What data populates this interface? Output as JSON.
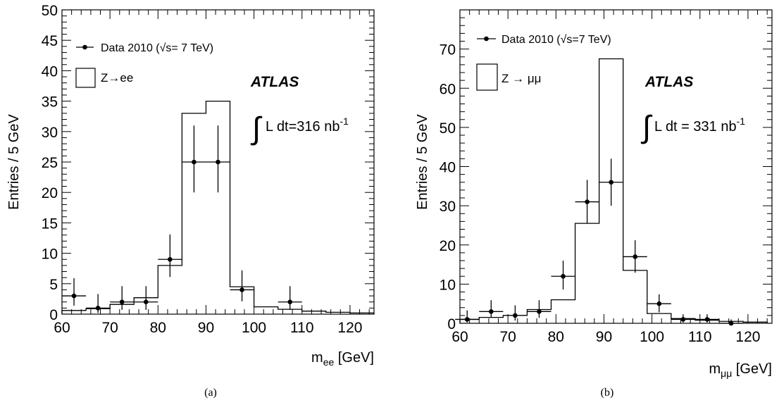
{
  "chart_data": [
    {
      "type": "histogram",
      "panel_label": "(a)",
      "ylabel": "Entries / 5 GeV",
      "xlabel_main": "m",
      "xlabel_sub": "ee",
      "xlabel_unit": " [GeV]",
      "xlim": [
        60,
        125
      ],
      "ylim": [
        0,
        50
      ],
      "xticks": [
        60,
        70,
        80,
        90,
        100,
        110,
        120
      ],
      "yticks": [
        0,
        5,
        10,
        15,
        20,
        25,
        30,
        35,
        40,
        45,
        50
      ],
      "atlas_label": "ATLAS",
      "lumi_label": "L dt=316 nb",
      "lumi_exp": "-1",
      "legend_data": "Data 2010 (√s= 7 TeV)",
      "legend_mc": "Z→ee",
      "mc_bins": [
        60,
        65,
        70,
        75,
        80,
        85,
        90,
        95,
        100,
        105,
        110,
        115,
        120,
        125
      ],
      "mc_values": [
        0.6,
        0.9,
        1.6,
        2.7,
        8.0,
        33.0,
        35.0,
        4.5,
        1.2,
        0.8,
        0.5,
        0.3,
        0.2
      ],
      "data_x": [
        62.5,
        67.5,
        72.5,
        77.5,
        82.5,
        87.5,
        92.5,
        97.5,
        107.5
      ],
      "data_y": [
        3,
        1,
        2,
        2,
        9,
        25,
        25,
        4,
        2
      ],
      "data_err_up": [
        2.9,
        2.3,
        2.6,
        2.6,
        4.1,
        6.0,
        6.0,
        3.2,
        2.6
      ],
      "data_err_dn": [
        1.6,
        0.8,
        1.3,
        1.3,
        2.9,
        5.0,
        5.0,
        1.9,
        1.3
      ]
    },
    {
      "type": "histogram",
      "panel_label": "(b)",
      "ylabel": "Entries / 5 GeV",
      "xlabel_main": "m",
      "xlabel_sub": "μμ",
      "xlabel_unit": " [GeV]",
      "xlim": [
        60,
        125
      ],
      "ylim": [
        0,
        80
      ],
      "xticks": [
        60,
        70,
        80,
        90,
        100,
        110,
        120
      ],
      "yticks": [
        0,
        10,
        20,
        30,
        40,
        50,
        60,
        70
      ],
      "atlas_label": "ATLAS",
      "lumi_label": "L dt = 331 nb",
      "lumi_exp": "-1",
      "legend_data": "Data 2010 (√s=7 TeV)",
      "legend_mc": "Z → μμ",
      "mc_bins": [
        59,
        64,
        69,
        74,
        79,
        84,
        89,
        94,
        99,
        104,
        109,
        114,
        119,
        124
      ],
      "mc_values": [
        1.0,
        1.5,
        2.0,
        3.5,
        6.0,
        25.5,
        67.5,
        13.5,
        2.5,
        1.2,
        0.8,
        0.5,
        0.3
      ],
      "data_x": [
        61.5,
        66.5,
        71.5,
        76.5,
        81.5,
        86.5,
        91.5,
        96.5,
        101.5,
        106.5,
        111.5,
        116.5
      ],
      "data_y": [
        1,
        3,
        2,
        3,
        12,
        31,
        36,
        17,
        5,
        1,
        1,
        0
      ],
      "data_err_up": [
        2.3,
        2.9,
        2.6,
        2.9,
        4.0,
        5.6,
        6.0,
        4.2,
        2.4,
        1.3,
        1.3,
        1.0
      ],
      "data_err_dn": [
        0.8,
        1.6,
        1.3,
        1.6,
        3.4,
        5.5,
        6.0,
        4.1,
        2.2,
        0.8,
        0.8,
        0
      ]
    }
  ]
}
